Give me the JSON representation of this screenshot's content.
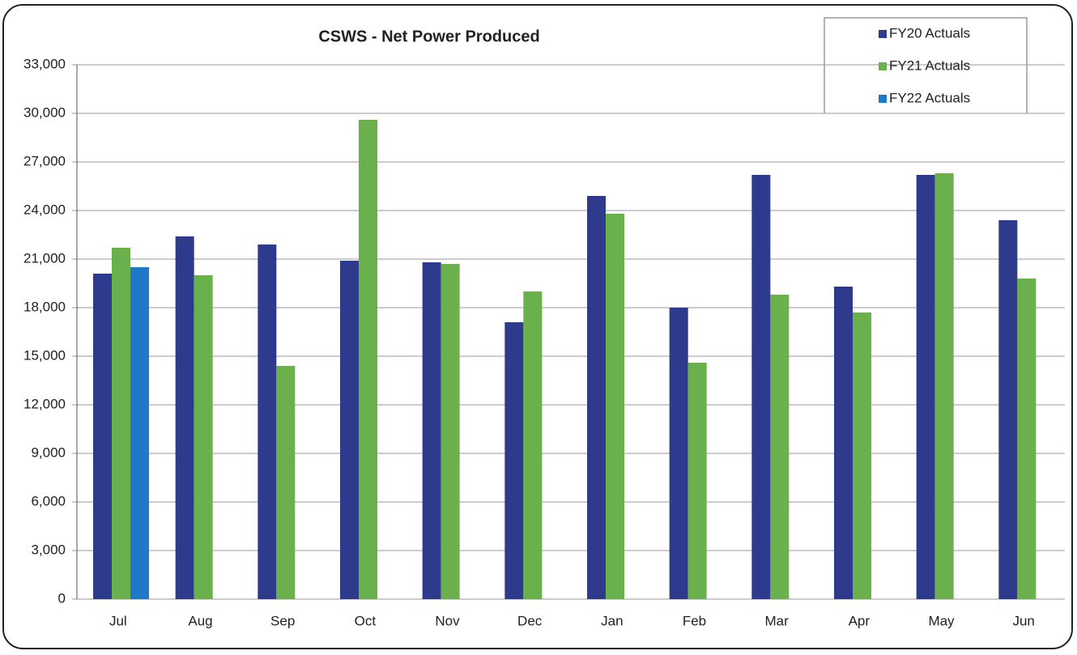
{
  "chart_data": {
    "type": "bar",
    "title": "CSWS - Net Power Produced",
    "categories": [
      "Jul",
      "Aug",
      "Sep",
      "Oct",
      "Nov",
      "Dec",
      "Jan",
      "Feb",
      "Mar",
      "Apr",
      "May",
      "Jun"
    ],
    "series": [
      {
        "name": "FY20 Actuals",
        "color": "#2e3a8c",
        "values": [
          20100,
          22400,
          21900,
          20900,
          20800,
          17100,
          24900,
          18000,
          26200,
          19300,
          26200,
          23400
        ]
      },
      {
        "name": "FY21 Actuals",
        "color": "#6ab04c",
        "values": [
          21700,
          20000,
          14400,
          29600,
          20700,
          19000,
          23800,
          14600,
          18800,
          17700,
          26300,
          19800
        ]
      },
      {
        "name": "FY22 Actuals",
        "color": "#1f78c8",
        "values": [
          20500,
          null,
          null,
          null,
          null,
          null,
          null,
          null,
          null,
          null,
          null,
          null
        ]
      }
    ],
    "ylim": [
      0,
      33000
    ],
    "yticks": [
      0,
      {
        "value": 3000,
        "label": "3,000"
      },
      {
        "value": 6000,
        "label": "6,000"
      },
      {
        "value": 9000,
        "label": "9,000"
      },
      {
        "value": 12000,
        "label": "12,000"
      },
      {
        "value": 15000,
        "label": "15,000"
      },
      {
        "value": 18000,
        "label": "18,000"
      },
      {
        "value": 21000,
        "label": "21,000"
      },
      {
        "value": 24000,
        "label": "24,000"
      },
      {
        "value": 27000,
        "label": "27,000"
      },
      {
        "value": 30000,
        "label": "30,000"
      },
      {
        "value": 33000,
        "label": "33,000"
      }
    ],
    "grid": true,
    "legend": "top-right"
  }
}
